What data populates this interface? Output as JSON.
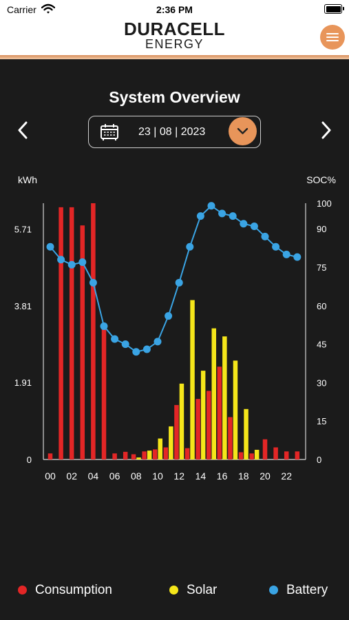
{
  "status_bar": {
    "carrier": "Carrier",
    "time": "2:36 PM"
  },
  "header": {
    "brand": "DURACELL",
    "brand_sub": "ENERGY",
    "menu_icon": "hamburger-icon",
    "accent_color": "#e8955a"
  },
  "page": {
    "title": "System Overview"
  },
  "date_picker": {
    "date": "23 | 08 | 2023",
    "icon": "calendar-icon",
    "dropdown_icon": "chevron-down-icon"
  },
  "chart_data": {
    "type": "bar",
    "left_axis_label": "kWh",
    "right_axis_label": "SOC%",
    "left_ticks": [
      "0",
      "1.91",
      "3.81",
      "5.71"
    ],
    "left_ylim": [
      0,
      6.35
    ],
    "right_ticks": [
      "0",
      "15",
      "30",
      "45",
      "60",
      "75",
      "90",
      "100"
    ],
    "right_ylim": [
      0,
      100
    ],
    "x_tick_labels": [
      "00",
      "02",
      "04",
      "06",
      "08",
      "10",
      "12",
      "14",
      "16",
      "18",
      "20",
      "22"
    ],
    "hours": [
      0,
      1,
      2,
      3,
      4,
      5,
      6,
      7,
      8,
      9,
      10,
      11,
      12,
      13,
      14,
      15,
      16,
      17,
      18,
      19,
      20,
      21,
      22,
      23
    ],
    "series": [
      {
        "name": "Consumption",
        "color": "#e32626",
        "axis": "left",
        "values": [
          0.15,
          6.25,
          6.25,
          5.8,
          6.35,
          3.25,
          0.15,
          0.19,
          0.13,
          0.2,
          0.25,
          0.3,
          1.35,
          0.28,
          1.5,
          1.7,
          2.3,
          1.05,
          0.18,
          0.15,
          0.5,
          0.3,
          0.2,
          0.2
        ]
      },
      {
        "name": "Solar",
        "color": "#f5e61a",
        "axis": "left",
        "values": [
          0,
          0,
          0,
          0,
          0,
          0,
          0,
          0,
          0.05,
          0.22,
          0.52,
          0.82,
          1.88,
          3.95,
          2.2,
          3.25,
          3.05,
          2.45,
          1.25,
          0.24,
          0,
          0,
          0,
          0
        ]
      },
      {
        "name": "Battery",
        "color": "#3aa4e4",
        "axis": "right",
        "values": [
          83,
          78,
          76,
          77,
          69,
          52,
          47,
          45,
          42,
          43,
          46,
          56,
          69,
          83,
          95,
          99,
          96,
          95,
          92,
          91,
          87,
          83,
          80,
          79
        ]
      }
    ]
  },
  "legend": [
    {
      "label": "Consumption",
      "color": "#e32626"
    },
    {
      "label": "Solar",
      "color": "#f5e61a"
    },
    {
      "label": "Battery",
      "color": "#3aa4e4"
    }
  ]
}
